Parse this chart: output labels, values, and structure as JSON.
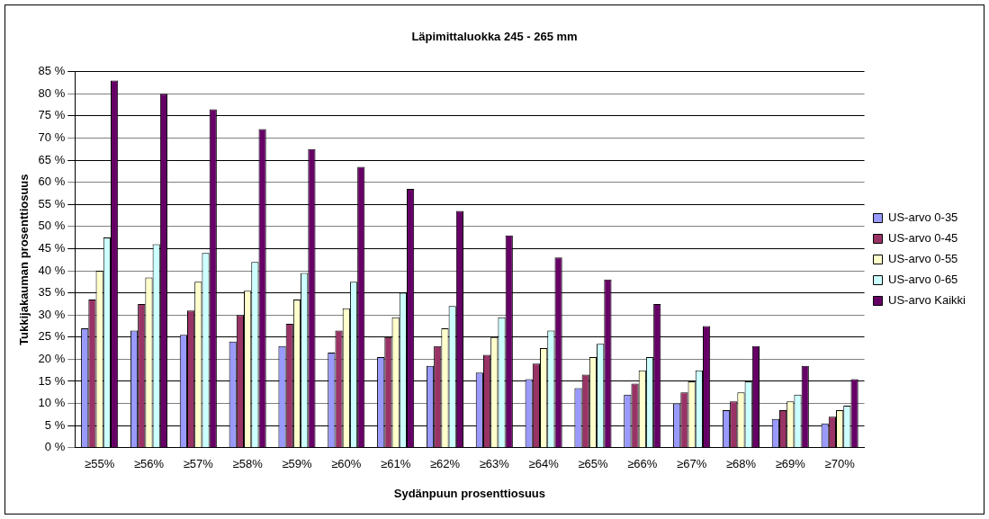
{
  "chart_data": {
    "type": "bar",
    "title": "Läpimittaluokka 245 - 265 mm",
    "xlabel": "Sydänpuun prosenttiosuus",
    "ylabel": "Tukkijakauman prosenttiosuus",
    "categories": [
      "≥55%",
      "≥56%",
      "≥57%",
      "≥58%",
      "≥59%",
      "≥60%",
      "≥61%",
      "≥62%",
      "≥63%",
      "≥64%",
      "≥65%",
      "≥66%",
      "≥67%",
      "≥68%",
      "≥69%",
      "≥70%"
    ],
    "series": [
      {
        "name": "US-arvo 0-35",
        "color": "#9999ff",
        "values": [
          27,
          26.5,
          25.5,
          24,
          23,
          21.5,
          20.5,
          18.5,
          17,
          15.5,
          13.5,
          12,
          10,
          8.5,
          6.5,
          5.5
        ]
      },
      {
        "name": "US-arvo 0-45",
        "color": "#993366",
        "values": [
          33.5,
          32.5,
          31,
          30,
          28,
          26.5,
          25,
          23,
          21,
          19,
          16.5,
          14.5,
          12.5,
          10.5,
          8.5,
          7
        ]
      },
      {
        "name": "US-arvo 0-55",
        "color": "#ffffcc",
        "values": [
          40,
          38.5,
          37.5,
          35.5,
          33.5,
          31.5,
          29.5,
          27,
          25,
          22.5,
          20.5,
          17.5,
          15,
          12.5,
          10.5,
          8.5
        ]
      },
      {
        "name": "US-arvo 0-65",
        "color": "#ccffff",
        "values": [
          47.5,
          46,
          44,
          42,
          39.5,
          37.5,
          35,
          32,
          29.5,
          26.5,
          23.5,
          20.5,
          17.5,
          15,
          12,
          9.5
        ]
      },
      {
        "name": "US-arvo Kaikki",
        "color": "#660066",
        "values": [
          83,
          80,
          76.5,
          72,
          67.5,
          63.5,
          58.5,
          53.5,
          48,
          43,
          38,
          32.5,
          27.5,
          23,
          18.5,
          15.5
        ]
      }
    ],
    "ylim": [
      0,
      85
    ],
    "yticks": [
      {
        "value": 0,
        "label": "0 %"
      },
      {
        "value": 5,
        "label": "5 %"
      },
      {
        "value": 10,
        "label": "10 %"
      },
      {
        "value": 15,
        "label": "15 %"
      },
      {
        "value": 20,
        "label": "20 %"
      },
      {
        "value": 25,
        "label": "25 %"
      },
      {
        "value": 30,
        "label": "30 %"
      },
      {
        "value": 35,
        "label": "35 %"
      },
      {
        "value": 40,
        "label": "40 %"
      },
      {
        "value": 45,
        "label": "45 %"
      },
      {
        "value": 50,
        "label": "50 %"
      },
      {
        "value": 55,
        "label": "55 %"
      },
      {
        "value": 60,
        "label": "60 %"
      },
      {
        "value": 65,
        "label": "65 %"
      },
      {
        "value": 70,
        "label": "70 %"
      },
      {
        "value": 75,
        "label": "75 %"
      },
      {
        "value": 80,
        "label": "80 %"
      },
      {
        "value": 85,
        "label": "85 %"
      }
    ],
    "grid": "y",
    "legend": "right"
  }
}
